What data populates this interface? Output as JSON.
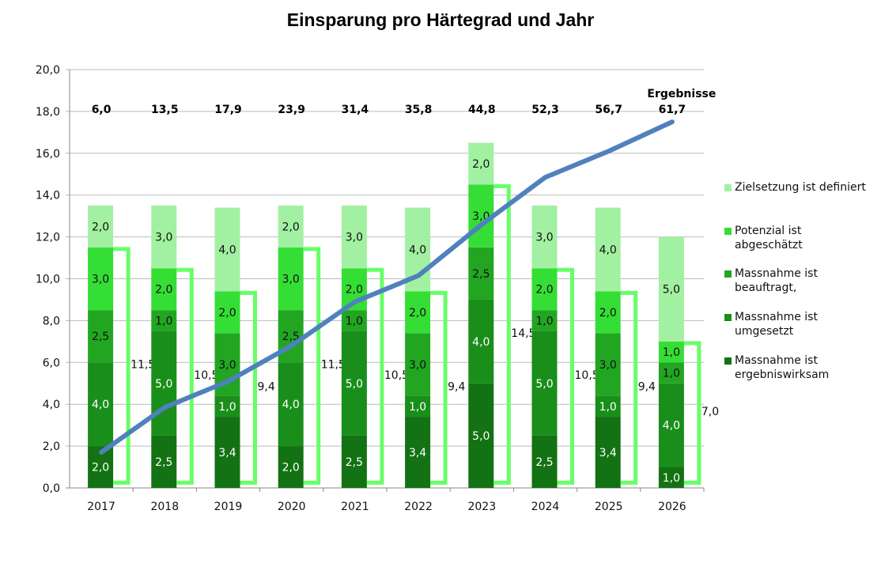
{
  "chart_data": {
    "type": "bar",
    "stacked": true,
    "title": "Einsparung pro Härtegrad und Jahr",
    "xlabel": "",
    "ylabel": "",
    "ylim": [
      0,
      20
    ],
    "y_ticks": [
      "0,0",
      "2,0",
      "4,0",
      "6,0",
      "8,0",
      "10,0",
      "12,0",
      "14,0",
      "16,0",
      "18,0",
      "20,0"
    ],
    "grid": true,
    "legend_position": "right",
    "categories": [
      "2017",
      "2018",
      "2019",
      "2020",
      "2021",
      "2022",
      "2023",
      "2024",
      "2025",
      "2026"
    ],
    "series": [
      {
        "name": "Massnahme ist ergebniswirksam",
        "color": "#137213",
        "values": [
          2.0,
          2.5,
          3.4,
          2.0,
          2.5,
          3.4,
          5.0,
          2.5,
          3.4,
          1.0
        ],
        "labels": [
          "2,0",
          "2,5",
          "3,4",
          "2,0",
          "2,5",
          "3,4",
          "5,0",
          "2,5",
          "3,4",
          "1,0"
        ]
      },
      {
        "name": "Massnahme ist umgesetzt",
        "color": "#1a8e1a",
        "values": [
          4.0,
          5.0,
          1.0,
          4.0,
          5.0,
          1.0,
          4.0,
          5.0,
          1.0,
          4.0
        ],
        "labels": [
          "4,0",
          "5,0",
          "1,0",
          "4,0",
          "5,0",
          "1,0",
          "4,0",
          "5,0",
          "1,0",
          "4,0"
        ]
      },
      {
        "name": "Massnahme ist beauftragt,",
        "color": "#22a622",
        "values": [
          2.5,
          1.0,
          3.0,
          2.5,
          1.0,
          3.0,
          2.5,
          1.0,
          3.0,
          1.0
        ],
        "labels": [
          "2,5",
          "1,0",
          "3,0",
          "2,5",
          "1,0",
          "3,0",
          "2,5",
          "1,0",
          "3,0",
          "1,0"
        ]
      },
      {
        "name": "Potenzial ist abgeschätzt",
        "color": "#35de35",
        "values": [
          3.0,
          2.0,
          2.0,
          3.0,
          2.0,
          2.0,
          3.0,
          2.0,
          2.0,
          1.0
        ],
        "labels": [
          "3,0",
          "2,0",
          "2,0",
          "3,0",
          "2,0",
          "2,0",
          "3,0",
          "2,0",
          "2,0",
          "1,0"
        ]
      },
      {
        "name": "Zielsetzung ist definiert",
        "color": "#a2f0a2",
        "values": [
          2.0,
          3.0,
          4.0,
          2.0,
          3.0,
          4.0,
          2.0,
          3.0,
          4.0,
          5.0
        ],
        "labels": [
          "2,0",
          "3,0",
          "4,0",
          "2,0",
          "3,0",
          "4,0",
          "2,0",
          "3,0",
          "4,0",
          "5,0"
        ]
      }
    ],
    "bracket": {
      "color": "#66ff66",
      "values": [
        11.5,
        10.5,
        9.4,
        11.5,
        10.5,
        9.4,
        14.5,
        10.5,
        9.4,
        7.0
      ],
      "labels": [
        "11,5",
        "10,5",
        "9,4",
        "11,5",
        "10,5",
        "9,4",
        "14,5",
        "10,5",
        "9,4",
        "7,0"
      ]
    },
    "line": {
      "color": "#4f81bd",
      "values": [
        1.7,
        3.85,
        5.1,
        6.8,
        8.9,
        10.15,
        12.6,
        14.85,
        16.1,
        17.5
      ]
    },
    "results": {
      "label": "Ergebnisse",
      "values": [
        "6,0",
        "13,5",
        "17,9",
        "23,9",
        "31,4",
        "35,8",
        "44,8",
        "52,3",
        "56,7",
        "61,7"
      ]
    }
  }
}
